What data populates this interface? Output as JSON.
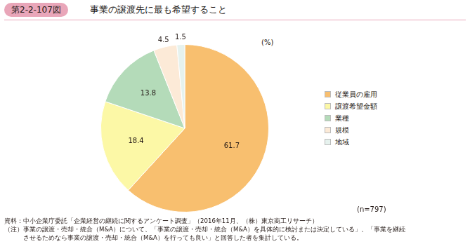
{
  "chart_data": {
    "type": "pie",
    "figure_number": "第2-2-107図",
    "title": "事業の譲渡先に最も希望すること",
    "unit_label": "(%)",
    "categories": [
      "従業員の雇用",
      "譲渡希望金額",
      "業種",
      "規模",
      "地域"
    ],
    "values": [
      61.7,
      18.4,
      13.8,
      4.5,
      1.5
    ],
    "colors": [
      "#f8bf6f",
      "#fcf8a6",
      "#b4dbb9",
      "#fcead7",
      "#e6f2ee"
    ],
    "data_labels": true,
    "legend": "right",
    "sample_size": "(n=797)",
    "source": "資料：中小企業庁委託「企業経営の継続に関するアンケート調査」（2016年11月、（株）東京商工リサーチ）",
    "notes": [
      "（注）事業の譲渡・売却・統合（M&A）について、「事業の譲渡・売却・統合（M&A）を具体的に検討または決定している」、「事業を継続",
      "　　　させるためなら事業の譲渡・売却・統合（M&A）を行っても良い」と回答した者を集計している。"
    ]
  }
}
